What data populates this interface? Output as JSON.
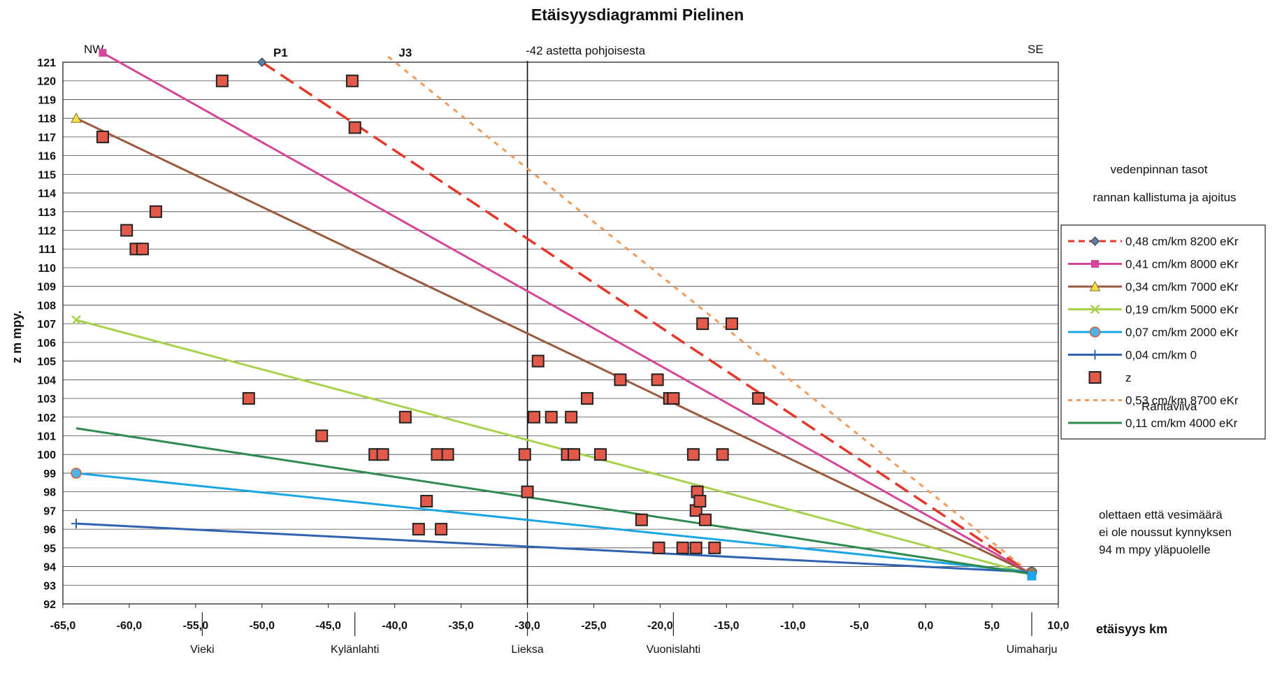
{
  "chart_data": {
    "type": "scatter",
    "title": "Etäisyysdiagrammi Pielinen",
    "xlabel": "etäisyys km",
    "ylabel": "z m mpy.",
    "xlim": [
      -65,
      10
    ],
    "ylim": [
      92,
      121
    ],
    "xticks": [
      "-65,0",
      "-60,0",
      "-55,0",
      "-50,0",
      "-45,0",
      "-40,0",
      "-35,0",
      "-30,0",
      "-25,0",
      "-20,0",
      "-15,0",
      "-10,0",
      "-5,0",
      "0,0",
      "5,0",
      "10,0"
    ],
    "yticks": [
      "92",
      "93",
      "94",
      "95",
      "96",
      "97",
      "98",
      "99",
      "100",
      "101",
      "102",
      "103",
      "104",
      "105",
      "106",
      "107",
      "108",
      "109",
      "110",
      "111",
      "112",
      "113",
      "114",
      "115",
      "116",
      "117",
      "118",
      "119",
      "120",
      "121"
    ],
    "grid": "horizontal",
    "legend": "right",
    "corner_labels": {
      "left": "NW",
      "right": "SE",
      "center": "-42 astetta pohjoisesta"
    },
    "line_labels": [
      "P1",
      "J3"
    ],
    "vertical_line_x": -30,
    "places": [
      {
        "name": "Vieki",
        "x": -54.5
      },
      {
        "name": "Kylänlahti",
        "x": -43
      },
      {
        "name": "Lieksa",
        "x": -30
      },
      {
        "name": "Vuonislahti",
        "x": -19
      },
      {
        "name": "Uimaharju",
        "x": 8
      }
    ],
    "series": [
      {
        "name": "0,48 cm/km 8200 eKr",
        "color": "#e5382a",
        "style": "dashed-long",
        "marker": "diamond",
        "points": [
          [
            -50,
            121
          ],
          [
            8,
            93.6
          ]
        ]
      },
      {
        "name": "0,41 cm/km 8000 eKr",
        "color": "#d4469a",
        "style": "solid",
        "marker": "square",
        "points": [
          [
            -62,
            121.5
          ],
          [
            8,
            93.6
          ]
        ]
      },
      {
        "name": "0,34 cm/km 7000 eKr",
        "color": "#9a5a3e",
        "style": "solid",
        "marker": "triangle",
        "points": [
          [
            -64,
            118
          ],
          [
            8,
            93.6
          ]
        ]
      },
      {
        "name": "0,19 cm/km 5000 eKr",
        "color": "#a8d24c",
        "style": "solid",
        "marker": "x",
        "points": [
          [
            -64,
            107.2
          ],
          [
            8,
            93.6
          ]
        ]
      },
      {
        "name": "0,07 cm/km 2000 eKr",
        "color": "#1aa5e6",
        "style": "solid",
        "marker": "circle",
        "points": [
          [
            -64,
            99
          ],
          [
            8,
            93.7
          ]
        ]
      },
      {
        "name": "0,04 cm/km 0",
        "color": "#2f63b2",
        "style": "solid",
        "marker": "plus",
        "points": [
          [
            -64,
            96.3
          ],
          [
            8,
            93.7
          ]
        ]
      },
      {
        "name": "z",
        "color": "#e45a4a",
        "style": "none",
        "marker": "square-big",
        "points": [
          [
            -53,
            120
          ],
          [
            -43.2,
            120
          ],
          [
            -62,
            117
          ],
          [
            -43,
            117.5
          ],
          [
            -58,
            113
          ],
          [
            -60.2,
            112
          ],
          [
            -59.5,
            111
          ],
          [
            -59,
            111
          ],
          [
            -51,
            103
          ],
          [
            -45.5,
            101
          ],
          [
            -39.2,
            102
          ],
          [
            -41.5,
            100
          ],
          [
            -40.9,
            100
          ],
          [
            -37.6,
            97.5
          ],
          [
            -38.2,
            96
          ],
          [
            -36.8,
            100
          ],
          [
            -36,
            100
          ],
          [
            -36.5,
            96
          ],
          [
            -30.2,
            100
          ],
          [
            -30,
            98
          ],
          [
            -29.2,
            105
          ],
          [
            -29.5,
            102
          ],
          [
            -28.2,
            102
          ],
          [
            -27,
            100
          ],
          [
            -26.5,
            100
          ],
          [
            -26.7,
            102
          ],
          [
            -25.5,
            103
          ],
          [
            -24.5,
            100
          ],
          [
            -23,
            104
          ],
          [
            -21.4,
            96.5
          ],
          [
            -20.2,
            104
          ],
          [
            -20.1,
            95
          ],
          [
            -19.3,
            103
          ],
          [
            -19,
            103
          ],
          [
            -18.3,
            95
          ],
          [
            -17.5,
            100
          ],
          [
            -17.3,
            95
          ],
          [
            -17.2,
            98
          ],
          [
            -17.3,
            97
          ],
          [
            -17,
            97.5
          ],
          [
            -16.8,
            107
          ],
          [
            -16.6,
            96.5
          ],
          [
            -15.9,
            95
          ],
          [
            -15.3,
            100
          ],
          [
            -14.6,
            107
          ],
          [
            -12.6,
            103
          ]
        ]
      },
      {
        "name": "0,53 cm/km 8700 eKr",
        "color": "#f39a5a",
        "style": "dotted",
        "marker": "none",
        "points": [
          [
            -40.5,
            121.3
          ],
          [
            8,
            93.6
          ]
        ]
      },
      {
        "name": "0,11 cm/km 4000 eKr",
        "color": "#2e8a4e",
        "style": "solid",
        "marker": "none",
        "points": [
          [
            -64,
            101.4
          ],
          [
            8,
            93.6
          ]
        ]
      }
    ],
    "legend_overlay_text": "Rantaviiva",
    "side_text": {
      "heading1": "vedenpinnan tasot",
      "heading2": "rannan kallistuma ja ajoitus",
      "note": [
        "olettaen että vesimäärä",
        "ei ole noussut kynnyksen",
        "94 m mpy yläpuolelle"
      ]
    }
  }
}
